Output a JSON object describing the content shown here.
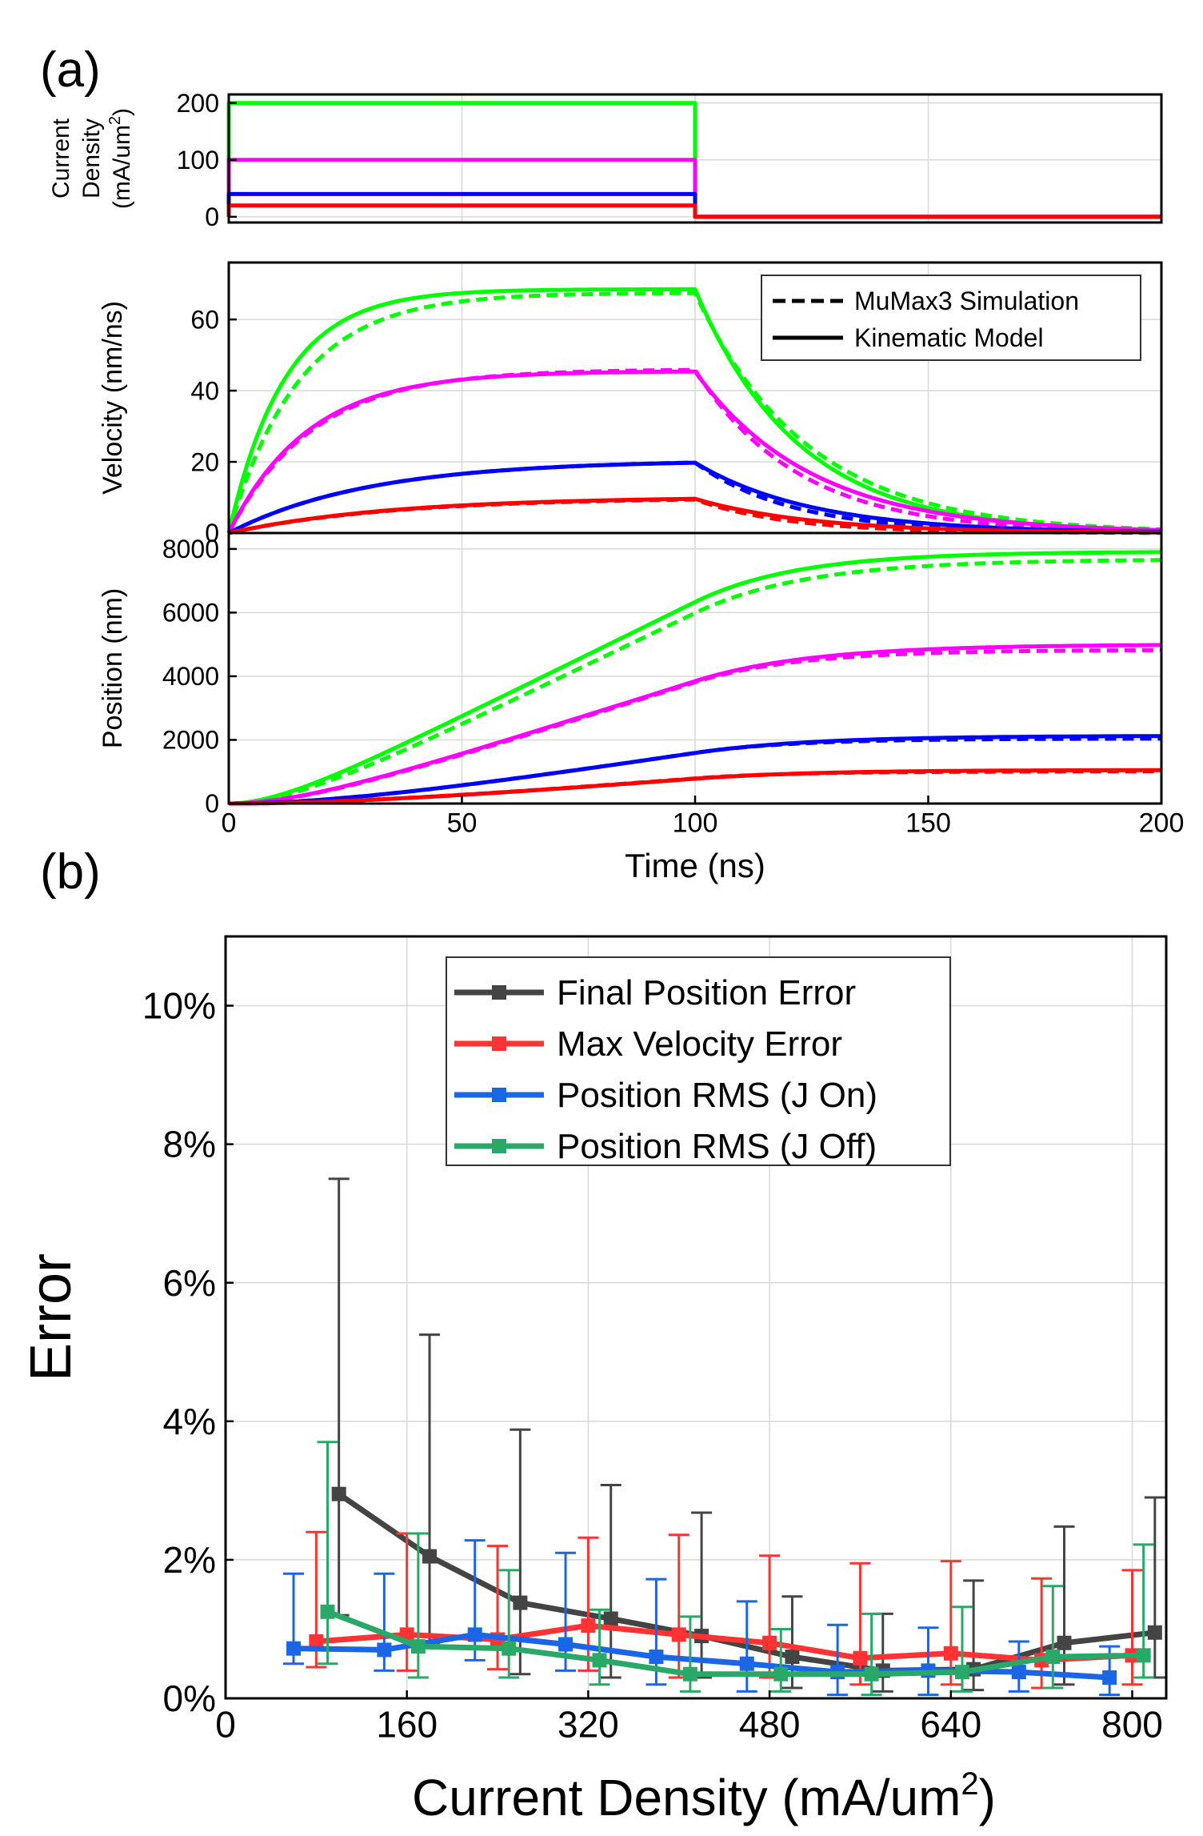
{
  "panel_labels": {
    "a": "(a)",
    "b": "(b)"
  },
  "colors": {
    "green": "#00ff00",
    "magenta": "#ff00ff",
    "blue": "#0000ff",
    "red": "#ff0000",
    "dark": "#444444",
    "red_b": "#ff3333",
    "blue_b": "#1a66e6",
    "green_b": "#2aa868",
    "grid": "#d8d8d8"
  },
  "legend_a": {
    "dashed": "MuMax3 Simulation",
    "solid": "Kinematic Model"
  },
  "chart_data": [
    {
      "id": "current",
      "type": "line",
      "ylabel_lines": [
        "Current",
        "Density",
        "(mA/um"
      ],
      "ylabel_sup": "2",
      "ylabel_close": ")",
      "xlim": [
        0,
        200
      ],
      "ylim": [
        -10,
        215
      ],
      "yticks": [
        0,
        100,
        200
      ],
      "series": [
        {
          "color": "green",
          "amplitude": 200
        },
        {
          "color": "magenta",
          "amplitude": 100
        },
        {
          "color": "blue",
          "amplitude": 40
        },
        {
          "color": "red",
          "amplitude": 20
        }
      ],
      "pulse_end": 100
    },
    {
      "id": "velocity",
      "type": "line",
      "ylabel": "Velocity (nm/ns)",
      "xlim": [
        0,
        200
      ],
      "ylim": [
        0,
        76
      ],
      "yticks": [
        0,
        20,
        40,
        60
      ],
      "series": [
        {
          "color": "green",
          "vmax": 68.5,
          "tau_up": 12,
          "tau_down": 22,
          "sim_vmax": 67.5,
          "sim_tau_up": 15,
          "sim_tau_down": 24
        },
        {
          "color": "magenta",
          "vmax": 45.5,
          "tau_up": 17,
          "tau_down": 25,
          "sim_vmax": 46,
          "sim_tau_up": 18,
          "sim_tau_down": 22
        },
        {
          "color": "blue",
          "vmax": 20.5,
          "tau_up": 30,
          "tau_down": 25,
          "sim_vmax": 20.5,
          "sim_tau_up": 30,
          "sim_tau_down": 21
        },
        {
          "color": "red",
          "vmax": 10.2,
          "tau_up": 35,
          "tau_down": 25,
          "sim_vmax": 10,
          "sim_tau_up": 35,
          "sim_tau_down": 20
        }
      ]
    },
    {
      "id": "position",
      "type": "line",
      "ylabel": "Position (nm)",
      "xlabel": "Time (ns)",
      "xlim": [
        0,
        200
      ],
      "ylim": [
        0,
        8500
      ],
      "xticks": [
        0,
        50,
        100,
        150,
        200
      ],
      "yticks": [
        0,
        2000,
        4000,
        6000,
        8000
      ],
      "final_positions": [
        {
          "color": "green",
          "model": 7900,
          "sim": 7650
        },
        {
          "color": "magenta",
          "model": 4980,
          "sim": 4820
        },
        {
          "color": "blue",
          "model": 2120,
          "sim": 2040
        },
        {
          "color": "red",
          "model": 1050,
          "sim": 1010
        }
      ]
    },
    {
      "id": "error",
      "type": "line",
      "xlabel": "Current Density (mA/um",
      "xlabel_sup": "2",
      "xlabel_close": ")",
      "ylabel": "Error",
      "xlim": [
        0,
        830
      ],
      "ylim": [
        0,
        11
      ],
      "xticks": [
        0,
        160,
        320,
        480,
        640,
        800
      ],
      "yticks": [
        0,
        2,
        4,
        6,
        8,
        10
      ],
      "ytick_suffix": "%",
      "legend": [
        "Final Position Error",
        "Max Velocity Error",
        "Position RMS (J On)",
        "Position RMS (J Off)"
      ],
      "series": [
        {
          "name": "Final Position Error",
          "color": "dark",
          "x": [
            100,
            180,
            260,
            340,
            420,
            500,
            580,
            660,
            740,
            820
          ],
          "y": [
            2.95,
            2.05,
            1.38,
            1.15,
            0.9,
            0.6,
            0.4,
            0.42,
            0.8,
            0.95
          ],
          "err_up": [
            7.5,
            5.25,
            3.88,
            3.08,
            2.68,
            1.47,
            1.22,
            1.7,
            2.48,
            2.9
          ],
          "err_dn": [
            1.2,
            0.8,
            0.35,
            0.3,
            0.3,
            0.15,
            0.1,
            0.12,
            0.2,
            0.3
          ]
        },
        {
          "name": "Max Velocity Error",
          "color": "red_b",
          "x": [
            80,
            160,
            240,
            320,
            400,
            480,
            560,
            640,
            720,
            800
          ],
          "y": [
            0.82,
            0.92,
            0.85,
            1.05,
            0.92,
            0.8,
            0.58,
            0.65,
            0.55,
            0.62
          ],
          "err_up": [
            2.4,
            2.38,
            2.2,
            2.32,
            2.36,
            2.06,
            1.95,
            1.98,
            1.73,
            1.85
          ],
          "err_dn": [
            0.45,
            0.4,
            0.42,
            0.4,
            0.3,
            0.3,
            0.2,
            0.2,
            0.15,
            0.2
          ]
        },
        {
          "name": "Position RMS (J On)",
          "color": "blue_b",
          "x": [
            60,
            140,
            220,
            300,
            380,
            460,
            540,
            620,
            700,
            780
          ],
          "y": [
            0.72,
            0.7,
            0.92,
            0.78,
            0.6,
            0.5,
            0.38,
            0.4,
            0.38,
            0.3
          ],
          "err_up": [
            1.8,
            1.8,
            2.28,
            2.1,
            1.72,
            1.4,
            1.06,
            1.02,
            0.82,
            0.75
          ],
          "err_dn": [
            0.5,
            0.4,
            0.55,
            0.4,
            0.2,
            0.1,
            0.05,
            0.05,
            0.1,
            0.05
          ]
        },
        {
          "name": "Position RMS (J Off)",
          "color": "green_b",
          "x": [
            90,
            170,
            250,
            330,
            410,
            490,
            570,
            650,
            730,
            810
          ],
          "y": [
            1.25,
            0.75,
            0.72,
            0.55,
            0.35,
            0.35,
            0.35,
            0.38,
            0.6,
            0.62
          ],
          "err_up": [
            3.7,
            2.38,
            1.85,
            1.28,
            1.18,
            1.0,
            1.22,
            1.32,
            1.62,
            2.22
          ],
          "err_dn": [
            0.5,
            0.3,
            0.3,
            0.2,
            0.1,
            0.1,
            0.05,
            0.1,
            0.15,
            0.3
          ]
        }
      ]
    }
  ]
}
